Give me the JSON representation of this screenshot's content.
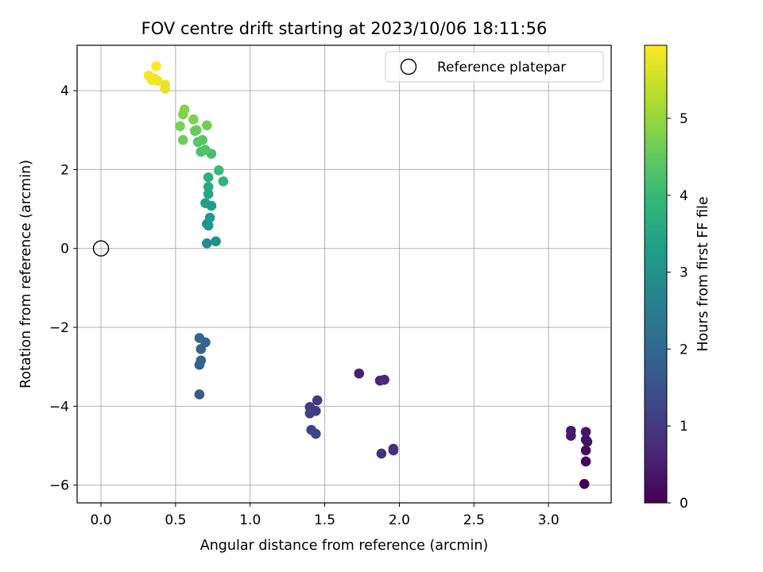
{
  "chart_data": {
    "type": "scatter",
    "title": "FOV centre drift starting at 2023/10/06 18:11:56",
    "xlabel": "Angular distance from reference (arcmin)",
    "ylabel": "Rotation from reference (arcmin)",
    "xlim": [
      -0.16,
      3.42
    ],
    "ylim": [
      -6.45,
      5.15
    ],
    "grid": true,
    "x_ticks": [
      "0.0",
      "0.5",
      "1.0",
      "1.5",
      "2.0",
      "2.5",
      "3.0"
    ],
    "x_tick_values": [
      0,
      0.5,
      1.0,
      1.5,
      2.0,
      2.5,
      3.0
    ],
    "y_ticks": [
      "−6",
      "−4",
      "−2",
      "0",
      "2",
      "4"
    ],
    "y_tick_values": [
      -6,
      -4,
      -2,
      0,
      2,
      4
    ],
    "legend": {
      "position": "top-right",
      "entries": [
        "Reference platepar"
      ]
    },
    "reference_point": {
      "name": "Reference platepar",
      "x": 0.0,
      "y": 0.0
    },
    "colorbar": {
      "label": "Hours from first FF file",
      "range": [
        0,
        5.95
      ],
      "ticks": [
        "0",
        "1",
        "2",
        "3",
        "4",
        "5"
      ],
      "tick_values": [
        0,
        1,
        2,
        3,
        4,
        5
      ],
      "colormap": "viridis"
    },
    "series": [
      {
        "points": [
          {
            "x": 3.24,
            "y": -5.97,
            "c": 0.05
          },
          {
            "x": 3.25,
            "y": -5.4,
            "c": 0.12
          },
          {
            "x": 3.25,
            "y": -5.12,
            "c": 0.18
          },
          {
            "x": 3.26,
            "y": -4.9,
            "c": 0.25
          },
          {
            "x": 3.25,
            "y": -4.85,
            "c": 0.3
          },
          {
            "x": 3.25,
            "y": -4.65,
            "c": 0.35
          },
          {
            "x": 3.15,
            "y": -4.75,
            "c": 0.4
          },
          {
            "x": 3.15,
            "y": -4.62,
            "c": 0.45
          },
          {
            "x": 1.73,
            "y": -3.17,
            "c": 0.55
          },
          {
            "x": 1.87,
            "y": -3.35,
            "c": 0.62
          },
          {
            "x": 1.9,
            "y": -3.33,
            "c": 0.68
          },
          {
            "x": 1.96,
            "y": -5.08,
            "c": 0.75
          },
          {
            "x": 1.96,
            "y": -5.12,
            "c": 0.8
          },
          {
            "x": 1.88,
            "y": -5.2,
            "c": 0.85
          },
          {
            "x": 1.45,
            "y": -3.85,
            "c": 1.0
          },
          {
            "x": 1.4,
            "y": -4.02,
            "c": 1.05
          },
          {
            "x": 1.44,
            "y": -4.12,
            "c": 1.1
          },
          {
            "x": 1.4,
            "y": -4.18,
            "c": 1.15
          },
          {
            "x": 1.41,
            "y": -4.6,
            "c": 1.2
          },
          {
            "x": 1.44,
            "y": -4.7,
            "c": 1.25
          },
          {
            "x": 0.66,
            "y": -3.7,
            "c": 1.7
          },
          {
            "x": 0.66,
            "y": -2.95,
            "c": 1.8
          },
          {
            "x": 0.67,
            "y": -2.84,
            "c": 1.85
          },
          {
            "x": 0.67,
            "y": -2.55,
            "c": 1.9
          },
          {
            "x": 0.7,
            "y": -2.38,
            "c": 1.95
          },
          {
            "x": 0.66,
            "y": -2.27,
            "c": 2.0
          },
          {
            "x": 0.71,
            "y": 0.13,
            "c": 2.9
          },
          {
            "x": 0.77,
            "y": 0.18,
            "c": 3.0
          },
          {
            "x": 0.72,
            "y": 0.58,
            "c": 3.1
          },
          {
            "x": 0.71,
            "y": 0.62,
            "c": 3.15
          },
          {
            "x": 0.73,
            "y": 0.78,
            "c": 3.2
          },
          {
            "x": 0.74,
            "y": 1.08,
            "c": 3.3
          },
          {
            "x": 0.7,
            "y": 1.15,
            "c": 3.35
          },
          {
            "x": 0.72,
            "y": 1.38,
            "c": 3.5
          },
          {
            "x": 0.72,
            "y": 1.56,
            "c": 3.6
          },
          {
            "x": 0.72,
            "y": 1.8,
            "c": 3.75
          },
          {
            "x": 0.82,
            "y": 1.7,
            "c": 3.85
          },
          {
            "x": 0.79,
            "y": 1.98,
            "c": 4.0
          },
          {
            "x": 0.74,
            "y": 2.4,
            "c": 4.2
          },
          {
            "x": 0.67,
            "y": 2.45,
            "c": 4.25
          },
          {
            "x": 0.7,
            "y": 2.5,
            "c": 4.3
          },
          {
            "x": 0.65,
            "y": 2.7,
            "c": 4.35
          },
          {
            "x": 0.68,
            "y": 2.75,
            "c": 4.4
          },
          {
            "x": 0.63,
            "y": 2.98,
            "c": 4.5
          },
          {
            "x": 0.64,
            "y": 3.0,
            "c": 4.55
          },
          {
            "x": 0.55,
            "y": 2.75,
            "c": 4.6
          },
          {
            "x": 0.71,
            "y": 3.12,
            "c": 4.65
          },
          {
            "x": 0.53,
            "y": 3.1,
            "c": 4.7
          },
          {
            "x": 0.62,
            "y": 3.27,
            "c": 4.75
          },
          {
            "x": 0.55,
            "y": 3.4,
            "c": 4.8
          },
          {
            "x": 0.56,
            "y": 3.52,
            "c": 4.85
          },
          {
            "x": 0.43,
            "y": 4.05,
            "c": 5.7
          },
          {
            "x": 0.43,
            "y": 4.15,
            "c": 5.75
          },
          {
            "x": 0.38,
            "y": 4.25,
            "c": 5.8
          },
          {
            "x": 0.34,
            "y": 4.27,
            "c": 5.82
          },
          {
            "x": 0.36,
            "y": 4.3,
            "c": 5.85
          },
          {
            "x": 0.32,
            "y": 4.38,
            "c": 5.88
          },
          {
            "x": 0.37,
            "y": 4.62,
            "c": 5.95
          }
        ]
      }
    ]
  },
  "colors": {
    "viridis": [
      "#440154",
      "#482878",
      "#3e4989",
      "#31688e",
      "#26828e",
      "#1f9e89",
      "#35b779",
      "#6ece58",
      "#b5de2b",
      "#fde725"
    ]
  }
}
